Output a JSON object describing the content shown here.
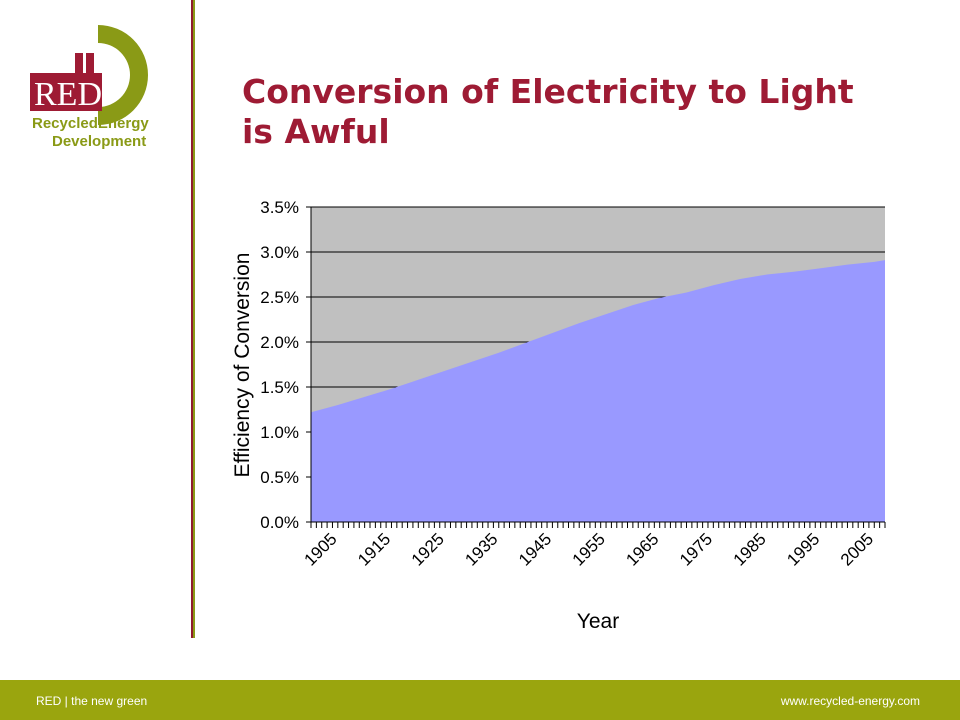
{
  "logo": {
    "mark_text": "RED",
    "line1": "RecycledEnergy",
    "line2": "Development",
    "colors": {
      "red": "#9e1b34",
      "green": "#8a9a16"
    }
  },
  "title": {
    "line1": "Conversion of Electricity to Light",
    "line2": "is Awful",
    "color": "#9e1b34"
  },
  "chart_data": {
    "type": "area",
    "title": "",
    "xlabel": "Year",
    "ylabel": "Efficiency of Conversion",
    "xlim": [
      1900,
      2007
    ],
    "ylim": [
      0,
      3.5
    ],
    "y_ticks": [
      "0.0%",
      "0.5%",
      "1.0%",
      "1.5%",
      "2.0%",
      "2.5%",
      "3.0%",
      "3.5%"
    ],
    "x_tick_labels": [
      "1905",
      "1915",
      "1925",
      "1935",
      "1945",
      "1955",
      "1965",
      "1975",
      "1985",
      "1995",
      "2005"
    ],
    "grid": true,
    "legend": false,
    "plot_background": "#c0c0c0",
    "fill_color": "#9999ff",
    "x": [
      1900,
      1905,
      1910,
      1915,
      1920,
      1925,
      1930,
      1935,
      1940,
      1945,
      1950,
      1955,
      1960,
      1965,
      1970,
      1975,
      1980,
      1985,
      1990,
      1995,
      2000,
      2005,
      2007
    ],
    "values": [
      1.22,
      1.3,
      1.39,
      1.48,
      1.58,
      1.68,
      1.78,
      1.88,
      1.99,
      2.1,
      2.21,
      2.31,
      2.41,
      2.49,
      2.55,
      2.63,
      2.7,
      2.75,
      2.78,
      2.82,
      2.86,
      2.89,
      2.91
    ]
  },
  "footer": {
    "left_text": "RED | the new green",
    "right_text": "www.recycled-energy.com",
    "color": "#9aa50e"
  }
}
